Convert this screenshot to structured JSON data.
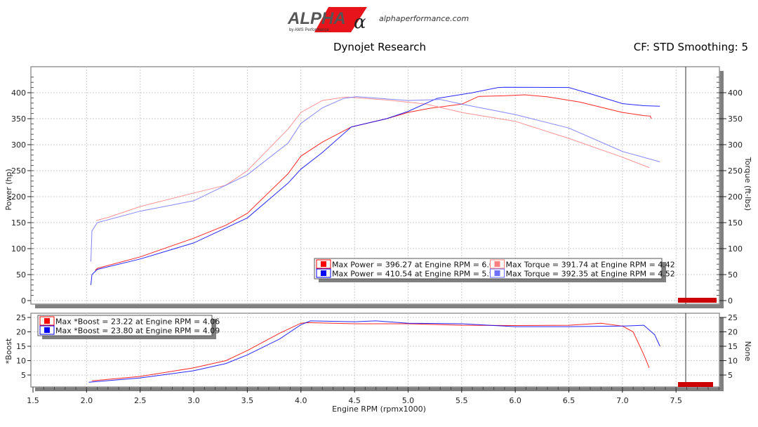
{
  "header": {
    "logo_text": "ALPHA",
    "logo_sub": "by AMS Performance",
    "website": "alphaperformance.com",
    "title": "Dynojet Research",
    "correction": "CF: STD Smoothing: 5"
  },
  "colors": {
    "red_power": "#ff0000",
    "red_torque": "#ff8080",
    "blue_power": "#0000ff",
    "blue_torque": "#7070ff"
  },
  "chart_data": [
    {
      "type": "line",
      "xlabel": "Engine RPM (rpmx1000)",
      "ylabel": "Power (hp)",
      "y2label": "Torque (ft-lbs)",
      "xlim": [
        1.5,
        7.9
      ],
      "ylim": [
        0,
        440
      ],
      "xticks": [
        "1.5",
        "2.0",
        "2.5",
        "3.0",
        "3.5",
        "4.0",
        "4.5",
        "5.0",
        "5.5",
        "6.0",
        "6.5",
        "7.0",
        "7.5"
      ],
      "yticks": [
        "0",
        "50",
        "100",
        "150",
        "200",
        "250",
        "300",
        "350",
        "400"
      ],
      "grid": true,
      "legend_placement": "bottom-right",
      "legend": [
        "Max Power = 396.27 at Engine RPM = 6.09",
        "Max Torque = 391.74 at Engine RPM = 4.42",
        "Max Power = 410.54 at Engine RPM = 5.90",
        "Max Torque = 392.35 at Engine RPM = 4.52"
      ],
      "series": [
        {
          "key": "red_power",
          "x": [
            2.08,
            2.1,
            2.5,
            3.0,
            3.3,
            3.5,
            3.88,
            4.0,
            4.2,
            4.47,
            4.8,
            5.0,
            5.2,
            5.5,
            5.66,
            5.9,
            6.09,
            6.3,
            6.6,
            7.0,
            7.2,
            7.26,
            7.27
          ],
          "y": [
            58,
            62,
            84,
            120,
            145,
            168,
            244,
            278,
            305,
            334,
            350,
            362,
            370,
            378,
            393,
            394,
            396,
            392,
            382,
            362,
            356,
            355,
            350
          ]
        },
        {
          "key": "red_torque",
          "x": [
            2.09,
            2.2,
            2.5,
            3.0,
            3.3,
            3.5,
            3.88,
            4.0,
            4.2,
            4.42,
            4.8,
            5.17,
            5.5,
            6.0,
            6.5,
            7.0,
            7.25
          ],
          "y": [
            154,
            160,
            181,
            207,
            222,
            250,
            330,
            362,
            385,
            391.7,
            386,
            378,
            362,
            345,
            312,
            276,
            256
          ]
        },
        {
          "key": "blue_power",
          "x": [
            2.04,
            2.05,
            2.1,
            2.5,
            3.0,
            3.5,
            3.88,
            4.0,
            4.2,
            4.47,
            4.8,
            5.0,
            5.27,
            5.6,
            5.84,
            5.9,
            6.5,
            6.7,
            7.0,
            7.2,
            7.35
          ],
          "y": [
            30,
            50,
            60,
            80,
            111,
            159,
            226,
            253,
            285,
            334,
            350,
            364,
            389,
            400,
            410,
            410.5,
            410,
            398,
            379,
            375,
            374
          ]
        },
        {
          "key": "blue_torque",
          "x": [
            2.04,
            2.05,
            2.1,
            2.5,
            3.0,
            3.5,
            3.88,
            4.0,
            4.2,
            4.4,
            4.52,
            5.0,
            5.3,
            5.5,
            6.0,
            6.5,
            7.0,
            7.35
          ],
          "y": [
            75,
            134,
            150,
            172,
            192,
            242,
            303,
            341,
            371,
            389,
            392.4,
            385,
            387,
            378,
            358,
            332,
            287,
            267
          ]
        }
      ]
    },
    {
      "type": "line",
      "xlabel": "Engine RPM (rpmx1000)",
      "ylabel": "*Boost",
      "y2label": "None",
      "xlim": [
        1.5,
        7.9
      ],
      "ylim": [
        0,
        26
      ],
      "yticks": [
        "5",
        "10",
        "15",
        "20",
        "25"
      ],
      "grid": true,
      "legend_placement": "top-left",
      "legend": [
        "Max *Boost = 23.22 at Engine RPM = 4.06",
        "Max *Boost = 23.80 at Engine RPM = 4.09"
      ],
      "series": [
        {
          "key": "red_power",
          "x": [
            2.05,
            2.5,
            3.0,
            3.3,
            3.5,
            3.8,
            4.0,
            4.06,
            4.5,
            5.0,
            5.5,
            6.0,
            6.5,
            6.8,
            7.0,
            7.1,
            7.2,
            7.25
          ],
          "y": [
            3,
            4.5,
            7.5,
            10,
            13.5,
            19.5,
            23,
            23.2,
            22.8,
            22.8,
            22.3,
            22.2,
            22.3,
            23,
            22,
            20,
            12,
            7.5
          ]
        },
        {
          "key": "blue_power",
          "x": [
            2.02,
            2.5,
            3.0,
            3.3,
            3.5,
            3.8,
            4.0,
            4.09,
            4.5,
            4.7,
            5.0,
            5.5,
            6.0,
            6.5,
            7.0,
            7.2,
            7.3,
            7.35
          ],
          "y": [
            2.5,
            4,
            6.5,
            9,
            12,
            17.5,
            22.5,
            23.8,
            23.5,
            23.8,
            23,
            22.8,
            21.8,
            21.8,
            22,
            22.3,
            19,
            15
          ]
        }
      ]
    }
  ]
}
